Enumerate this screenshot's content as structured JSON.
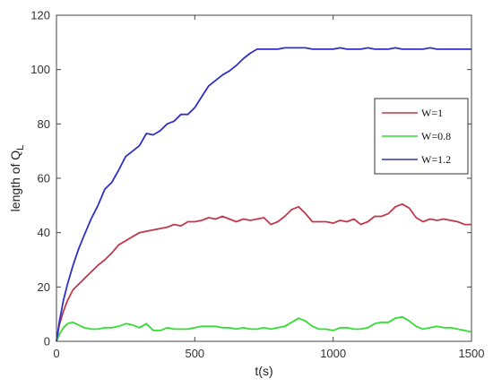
{
  "chart_data": {
    "type": "line",
    "title": "",
    "xlabel": "t(s)",
    "ylabel_main": "length of Q",
    "ylabel_sub": "L",
    "xlim": [
      0,
      1500
    ],
    "ylim": [
      0,
      120
    ],
    "xticks": [
      0,
      500,
      1000,
      1500
    ],
    "yticks": [
      0,
      20,
      40,
      60,
      80,
      100,
      120
    ],
    "grid": false,
    "legend_position": "right",
    "series": [
      {
        "name": "W=1",
        "color": "#c0394b",
        "x": [
          0,
          10,
          25,
          40,
          60,
          80,
          100,
          125,
          150,
          175,
          200,
          225,
          250,
          275,
          300,
          325,
          350,
          375,
          400,
          425,
          450,
          475,
          500,
          525,
          550,
          575,
          600,
          625,
          650,
          675,
          700,
          725,
          750,
          775,
          800,
          825,
          850,
          875,
          900,
          925,
          950,
          975,
          1000,
          1025,
          1050,
          1075,
          1100,
          1125,
          1150,
          1175,
          1200,
          1225,
          1250,
          1275,
          1300,
          1325,
          1350,
          1375,
          1400,
          1425,
          1450,
          1475,
          1500
        ],
        "y": [
          0,
          6,
          11,
          15,
          19,
          21,
          23,
          25.5,
          28,
          30,
          32.5,
          35.5,
          37,
          38.5,
          40,
          40.5,
          41,
          41.5,
          42,
          43,
          42.5,
          44,
          44,
          44.5,
          45.5,
          45,
          46,
          45,
          44,
          45,
          44.5,
          45,
          45.5,
          43,
          44,
          46,
          48.5,
          49.5,
          47,
          44,
          44,
          44,
          43.5,
          44.5,
          44,
          45,
          43,
          44,
          46,
          46,
          47,
          49.5,
          50.5,
          49,
          45.5,
          44,
          45,
          44.5,
          45,
          44.5,
          44,
          43,
          43
        ]
      },
      {
        "name": "W=0.8",
        "color": "#33dd33",
        "x": [
          0,
          10,
          25,
          40,
          60,
          80,
          100,
          125,
          150,
          175,
          200,
          225,
          250,
          275,
          300,
          325,
          350,
          375,
          400,
          425,
          450,
          475,
          500,
          525,
          550,
          575,
          600,
          625,
          650,
          675,
          700,
          725,
          750,
          775,
          800,
          825,
          850,
          875,
          900,
          925,
          950,
          975,
          1000,
          1025,
          1050,
          1075,
          1100,
          1125,
          1150,
          1175,
          1200,
          1225,
          1250,
          1275,
          1300,
          1325,
          1350,
          1375,
          1400,
          1425,
          1450,
          1475,
          1500
        ],
        "y": [
          0,
          2.5,
          5,
          6.5,
          7,
          6,
          5,
          4.5,
          4.5,
          5,
          5,
          5.5,
          6.5,
          6,
          5,
          6.5,
          4,
          4,
          5,
          4.5,
          4.5,
          4.5,
          5,
          5.5,
          5.5,
          5.5,
          5,
          5,
          4.5,
          5,
          4.5,
          4.5,
          5,
          4.5,
          5,
          5.5,
          7,
          8.5,
          7.5,
          5.5,
          4.5,
          4.5,
          4,
          5,
          5,
          4.5,
          4.5,
          5,
          6.5,
          7,
          7,
          8.5,
          9,
          7.5,
          5.5,
          4.5,
          5,
          5.5,
          5,
          5,
          4.5,
          4,
          3.5
        ]
      },
      {
        "name": "W=1.2",
        "color": "#3030c8",
        "x": [
          0,
          10,
          25,
          40,
          60,
          80,
          100,
          125,
          150,
          175,
          200,
          225,
          250,
          275,
          300,
          325,
          350,
          375,
          400,
          425,
          450,
          475,
          500,
          525,
          550,
          575,
          600,
          625,
          650,
          675,
          700,
          725,
          750,
          775,
          800,
          825,
          850,
          875,
          900,
          925,
          950,
          975,
          1000,
          1025,
          1050,
          1075,
          1100,
          1125,
          1150,
          1175,
          1200,
          1225,
          1250,
          1275,
          1300,
          1325,
          1350,
          1375,
          1400,
          1425,
          1450,
          1475,
          1500
        ],
        "y": [
          0,
          7,
          15,
          21,
          28,
          34,
          39,
          45,
          50,
          56,
          58.5,
          63,
          68,
          70,
          72,
          76.5,
          76,
          77.5,
          80,
          81,
          83.5,
          83.5,
          86,
          90,
          94,
          96,
          98,
          99.5,
          101.5,
          104,
          106,
          107.5,
          107.5,
          107.5,
          107.5,
          108,
          108,
          108,
          108,
          107.5,
          107.5,
          107.5,
          107.5,
          108,
          107.5,
          107.5,
          107.5,
          108,
          107.5,
          107.5,
          107.5,
          108,
          107.5,
          107.5,
          107.5,
          107.5,
          108,
          107.5,
          107.5,
          107.5,
          107.5,
          107.5,
          107.5
        ]
      }
    ]
  }
}
